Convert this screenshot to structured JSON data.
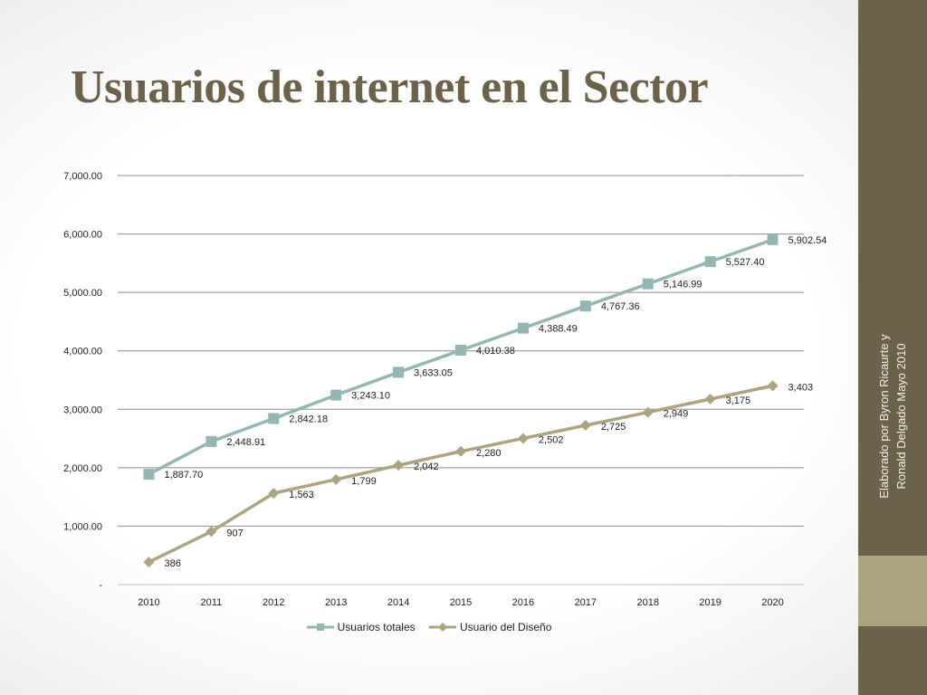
{
  "slide": {
    "title": "Usuarios de internet en el Sector",
    "side_note_line1": "Elaborado por Byron Ricaurte y",
    "side_note_line2": "Ronald Delgado Mayo 2010"
  },
  "colors": {
    "title": "#6b6249",
    "sidebar": "#6b6249",
    "sidebar_accent": "#aca47f",
    "series_totales": "#93b6b4",
    "series_diseno": "#aca47f",
    "gridline": "#8c8c8c"
  },
  "chart_data": {
    "type": "line",
    "title": "",
    "xlabel": "",
    "ylabel": "",
    "x": [
      "2010",
      "2011",
      "2012",
      "2013",
      "2014",
      "2015",
      "2016",
      "2017",
      "2018",
      "2019",
      "2020"
    ],
    "ylim": [
      0,
      7000
    ],
    "yticks": [
      0,
      1000,
      2000,
      3000,
      4000,
      5000,
      6000,
      7000
    ],
    "ytick_labels": [
      "-",
      "1,000.00",
      "2,000.00",
      "3,000.00",
      "4,000.00",
      "5,000.00",
      "6,000.00",
      "7,000.00"
    ],
    "grid": true,
    "legend_position": "bottom",
    "series": [
      {
        "name": "Usuarios totales",
        "marker": "square",
        "color": "#93b6b4",
        "values": [
          1887.7,
          2448.91,
          2842.18,
          3243.1,
          3633.05,
          4010.38,
          4388.49,
          4767.36,
          5146.99,
          5527.4,
          5902.54
        ],
        "labels": [
          "1,887.70",
          "2,448.91",
          "2,842.18",
          "3,243.10",
          "3,633.05",
          "4,010.38",
          "4,388.49",
          "4,767.36",
          "5,146.99",
          "5,527.40",
          "5,902.54"
        ]
      },
      {
        "name": "Usuario del Diseño",
        "marker": "diamond",
        "color": "#aca47f",
        "values": [
          386,
          907,
          1563,
          1799,
          2042,
          2280,
          2502,
          2725,
          2949,
          3175,
          3403
        ],
        "labels": [
          "386",
          "907",
          "1,563",
          "1,799",
          "2,042",
          "2,280",
          "2,502",
          "2,725",
          "2,949",
          "3,175",
          "3,403"
        ]
      }
    ]
  }
}
